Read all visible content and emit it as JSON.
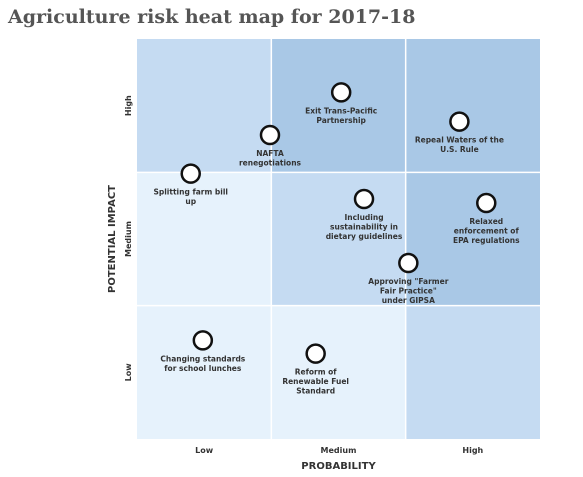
{
  "chart_data": {
    "type": "scatter",
    "title": "Agriculture risk heat map for 2017-18",
    "xlabel": "PROBABILITY",
    "ylabel": "POTENTIAL IMPACT",
    "x_categories": [
      "Low",
      "Medium",
      "High"
    ],
    "y_categories": [
      "Low",
      "Medium",
      "High"
    ],
    "xlim": [
      0,
      3
    ],
    "ylim": [
      0,
      3
    ],
    "grid": true,
    "cells": [
      {
        "x": 0,
        "y": 2,
        "color": "#c5dbf2"
      },
      {
        "x": 1,
        "y": 2,
        "color": "#a9c8e6"
      },
      {
        "x": 2,
        "y": 2,
        "color": "#a9c8e6"
      },
      {
        "x": 0,
        "y": 1,
        "color": "#e6f2fc"
      },
      {
        "x": 1,
        "y": 1,
        "color": "#c5dbf2"
      },
      {
        "x": 2,
        "y": 1,
        "color": "#a9c8e6"
      },
      {
        "x": 0,
        "y": 0,
        "color": "#e6f2fc"
      },
      {
        "x": 1,
        "y": 0,
        "color": "#e6f2fc"
      },
      {
        "x": 2,
        "y": 0,
        "color": "#c5dbf2"
      }
    ],
    "points": [
      {
        "label": [
          "Exit Trans-Pacific",
          "Partnership"
        ],
        "x": 1.52,
        "y": 2.6,
        "anchor": "below"
      },
      {
        "label": [
          "NAFTA",
          "renegotiations"
        ],
        "x": 0.99,
        "y": 2.28,
        "anchor": "below"
      },
      {
        "label": [
          "Repeal Waters of the",
          "U.S. Rule"
        ],
        "x": 2.4,
        "y": 2.38,
        "anchor": "below"
      },
      {
        "label": [
          "Splitting farm bill",
          "up"
        ],
        "x": 0.4,
        "y": 1.99,
        "anchor": "below"
      },
      {
        "label": [
          "Including",
          "sustainability in",
          "dietary guidelines"
        ],
        "x": 1.69,
        "y": 1.8,
        "anchor": "below"
      },
      {
        "label": [
          "Relaxed",
          "enforcement of",
          "EPA regulations"
        ],
        "x": 2.6,
        "y": 1.77,
        "anchor": "below"
      },
      {
        "label": [
          "Approving \"Farmer",
          "Fair Practice\"",
          "under GIPSA"
        ],
        "x": 2.02,
        "y": 1.32,
        "anchor": "below"
      },
      {
        "label": [
          "Changing standards",
          "for school lunches"
        ],
        "x": 0.49,
        "y": 0.74,
        "anchor": "below"
      },
      {
        "label": [
          "Reform of",
          "Renewable Fuel",
          "Standard"
        ],
        "x": 1.33,
        "y": 0.64,
        "anchor": "below"
      }
    ]
  },
  "colors": {
    "title": "#555555",
    "axis_text": "#333333",
    "gridline": "#ffffff",
    "marker_fill": "#ffffff",
    "marker_stroke": "#111111"
  }
}
